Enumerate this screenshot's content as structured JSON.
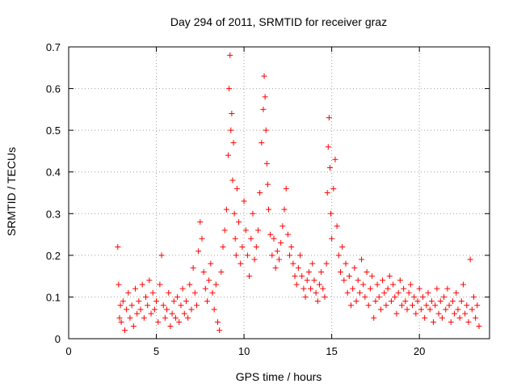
{
  "chart_data": {
    "type": "scatter",
    "title": "Day 294 of 2011, SRMTID for receiver graz",
    "xlabel": "GPS time / hours",
    "ylabel": "SRMTID / TECUs",
    "xlim": [
      0,
      24
    ],
    "ylim": [
      0,
      0.7
    ],
    "xticks": [
      "0",
      "5",
      "10",
      "15",
      "20"
    ],
    "yticks": [
      "0",
      "0.1",
      "0.2",
      "0.3",
      "0.4",
      "0.5",
      "0.6",
      "0.7"
    ],
    "grid": true,
    "marker": "+",
    "color": "#ff0000",
    "series": [
      {
        "x": [
          2.8,
          2.85,
          2.9,
          2.95,
          3.0,
          3.1,
          3.2,
          3.3,
          3.4,
          3.5,
          3.6,
          3.7,
          3.8,
          3.9,
          4.0,
          4.1,
          4.2,
          4.3,
          4.4,
          4.5,
          4.6,
          4.7,
          4.8,
          4.9,
          5.0,
          5.1,
          5.2,
          5.3,
          5.4,
          5.5,
          5.6,
          5.7,
          5.8,
          5.9,
          6.0,
          6.1,
          6.2,
          6.3,
          6.4,
          6.5,
          6.6,
          6.7,
          6.8,
          6.9,
          7.0,
          7.1,
          7.2,
          7.3,
          7.4,
          7.5,
          7.6,
          7.7,
          7.8,
          7.9,
          8.0,
          8.1,
          8.2,
          8.3,
          8.4,
          8.5,
          8.6,
          8.7,
          8.8,
          8.9,
          9.0,
          9.1,
          9.15,
          9.2,
          9.25,
          9.3,
          9.35,
          9.4,
          9.45,
          9.5,
          9.55,
          9.6,
          9.7,
          9.8,
          9.9,
          10.0,
          10.1,
          10.2,
          10.3,
          10.4,
          10.5,
          10.6,
          10.7,
          10.8,
          10.9,
          11.0,
          11.1,
          11.15,
          11.2,
          11.25,
          11.3,
          11.35,
          11.4,
          11.5,
          11.6,
          11.7,
          11.8,
          11.9,
          12.0,
          12.1,
          12.2,
          12.3,
          12.4,
          12.5,
          12.6,
          12.7,
          12.8,
          12.9,
          13.0,
          13.1,
          13.2,
          13.3,
          13.4,
          13.5,
          13.6,
          13.7,
          13.8,
          13.9,
          14.0,
          14.1,
          14.2,
          14.3,
          14.4,
          14.5,
          14.6,
          14.7,
          14.75,
          14.8,
          14.85,
          14.9,
          14.95,
          15.0,
          15.1,
          15.2,
          15.3,
          15.4,
          15.5,
          15.6,
          15.7,
          15.8,
          15.9,
          16.0,
          16.1,
          16.2,
          16.3,
          16.4,
          16.5,
          16.6,
          16.7,
          16.8,
          16.9,
          17.0,
          17.1,
          17.2,
          17.3,
          17.4,
          17.5,
          17.6,
          17.7,
          17.8,
          17.9,
          18.0,
          18.1,
          18.2,
          18.3,
          18.4,
          18.5,
          18.6,
          18.7,
          18.8,
          18.9,
          19.0,
          19.1,
          19.2,
          19.3,
          19.4,
          19.5,
          19.6,
          19.7,
          19.8,
          19.9,
          20.0,
          20.1,
          20.2,
          20.3,
          20.4,
          20.5,
          20.6,
          20.7,
          20.8,
          20.9,
          21.0,
          21.1,
          21.2,
          21.3,
          21.4,
          21.5,
          21.6,
          21.7,
          21.8,
          21.9,
          22.0,
          22.1,
          22.2,
          22.3,
          22.4,
          22.5,
          22.6,
          22.7,
          22.8,
          22.9,
          23.0,
          23.1,
          23.2,
          23.3,
          23.4
        ],
        "y": [
          0.22,
          0.13,
          0.05,
          0.08,
          0.04,
          0.09,
          0.02,
          0.07,
          0.11,
          0.05,
          0.08,
          0.03,
          0.12,
          0.06,
          0.09,
          0.07,
          0.13,
          0.05,
          0.1,
          0.08,
          0.14,
          0.06,
          0.11,
          0.07,
          0.09,
          0.04,
          0.13,
          0.2,
          0.08,
          0.05,
          0.07,
          0.11,
          0.03,
          0.06,
          0.09,
          0.05,
          0.1,
          0.04,
          0.08,
          0.12,
          0.06,
          0.09,
          0.05,
          0.13,
          0.07,
          0.17,
          0.11,
          0.08,
          0.21,
          0.28,
          0.24,
          0.16,
          0.12,
          0.09,
          0.14,
          0.18,
          0.11,
          0.07,
          0.13,
          0.04,
          0.02,
          0.16,
          0.22,
          0.26,
          0.31,
          0.44,
          0.6,
          0.68,
          0.5,
          0.54,
          0.38,
          0.47,
          0.3,
          0.24,
          0.2,
          0.36,
          0.28,
          0.18,
          0.22,
          0.33,
          0.26,
          0.2,
          0.15,
          0.24,
          0.3,
          0.19,
          0.22,
          0.26,
          0.35,
          0.47,
          0.55,
          0.63,
          0.58,
          0.5,
          0.42,
          0.37,
          0.31,
          0.25,
          0.2,
          0.24,
          0.17,
          0.21,
          0.19,
          0.23,
          0.27,
          0.31,
          0.36,
          0.25,
          0.2,
          0.22,
          0.18,
          0.15,
          0.13,
          0.17,
          0.2,
          0.15,
          0.12,
          0.1,
          0.14,
          0.16,
          0.12,
          0.18,
          0.14,
          0.11,
          0.09,
          0.13,
          0.16,
          0.12,
          0.1,
          0.18,
          0.35,
          0.46,
          0.53,
          0.41,
          0.3,
          0.24,
          0.36,
          0.43,
          0.27,
          0.2,
          0.16,
          0.22,
          0.14,
          0.18,
          0.11,
          0.15,
          0.08,
          0.12,
          0.17,
          0.09,
          0.14,
          0.11,
          0.19,
          0.13,
          0.1,
          0.16,
          0.08,
          0.12,
          0.15,
          0.05,
          0.09,
          0.13,
          0.1,
          0.07,
          0.14,
          0.11,
          0.08,
          0.12,
          0.15,
          0.09,
          0.13,
          0.1,
          0.06,
          0.11,
          0.14,
          0.08,
          0.12,
          0.09,
          0.07,
          0.11,
          0.13,
          0.08,
          0.1,
          0.06,
          0.09,
          0.12,
          0.07,
          0.1,
          0.05,
          0.08,
          0.11,
          0.07,
          0.09,
          0.04,
          0.08,
          0.12,
          0.06,
          0.09,
          0.05,
          0.1,
          0.07,
          0.12,
          0.08,
          0.04,
          0.09,
          0.06,
          0.11,
          0.07,
          0.05,
          0.09,
          0.13,
          0.06,
          0.08,
          0.04,
          0.19,
          0.07,
          0.1,
          0.05,
          0.08,
          0.03
        ]
      }
    ]
  }
}
